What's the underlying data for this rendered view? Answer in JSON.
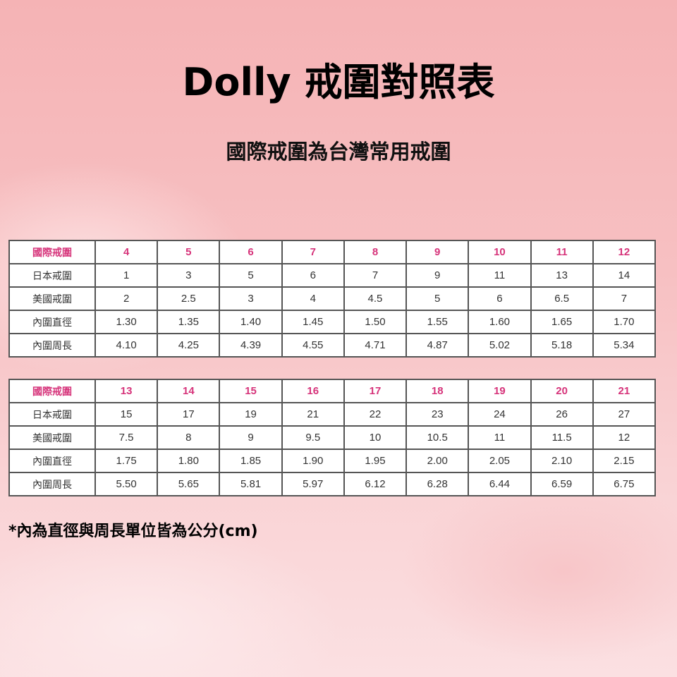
{
  "title": "Dolly 戒圍對照表",
  "subtitle": "國際戒圍為台灣常用戒圍",
  "tables": [
    {
      "rows": [
        {
          "label": "國際戒圍",
          "values": [
            "4",
            "5",
            "6",
            "7",
            "8",
            "9",
            "10",
            "11",
            "12"
          ]
        },
        {
          "label": "日本戒圍",
          "values": [
            "1",
            "3",
            "5",
            "6",
            "7",
            "9",
            "11",
            "13",
            "14"
          ]
        },
        {
          "label": "美國戒圍",
          "values": [
            "2",
            "2.5",
            "3",
            "4",
            "4.5",
            "5",
            "6",
            "6.5",
            "7"
          ]
        },
        {
          "label": "內圍直徑",
          "values": [
            "1.30",
            "1.35",
            "1.40",
            "1.45",
            "1.50",
            "1.55",
            "1.60",
            "1.65",
            "1.70"
          ]
        },
        {
          "label": "內圍周長",
          "values": [
            "4.10",
            "4.25",
            "4.39",
            "4.55",
            "4.71",
            "4.87",
            "5.02",
            "5.18",
            "5.34"
          ]
        }
      ]
    },
    {
      "rows": [
        {
          "label": "國際戒圍",
          "values": [
            "13",
            "14",
            "15",
            "16",
            "17",
            "18",
            "19",
            "20",
            "21"
          ]
        },
        {
          "label": "日本戒圍",
          "values": [
            "15",
            "17",
            "19",
            "21",
            "22",
            "23",
            "24",
            "26",
            "27"
          ]
        },
        {
          "label": "美國戒圍",
          "values": [
            "7.5",
            "8",
            "9",
            "9.5",
            "10",
            "10.5",
            "11",
            "11.5",
            "12"
          ]
        },
        {
          "label": "內圍直徑",
          "values": [
            "1.75",
            "1.80",
            "1.85",
            "1.90",
            "1.95",
            "2.00",
            "2.05",
            "2.10",
            "2.15"
          ]
        },
        {
          "label": "內圍周長",
          "values": [
            "5.50",
            "5.65",
            "5.81",
            "5.97",
            "6.12",
            "6.28",
            "6.44",
            "6.59",
            "6.75"
          ]
        }
      ]
    }
  ],
  "note": "*內為直徑與周長單位皆為公分(cm)",
  "colors": {
    "accent": "#d6337a",
    "background": "#f5b3b5"
  }
}
